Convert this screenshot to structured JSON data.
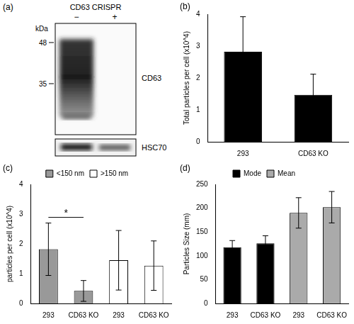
{
  "blot": {
    "panel": "(a)",
    "title": "CD63 CRISPR",
    "lanes": [
      "−",
      "+"
    ],
    "unit": "kDa",
    "markers": [
      48,
      35
    ],
    "bands": [
      "CD63",
      "HSC70"
    ]
  },
  "chart_data": [
    {
      "panel": "(b)",
      "type": "bar",
      "y_label": "Total particles per cell (x10^4)",
      "categories": [
        "293",
        "CD63 KO"
      ],
      "values": [
        2.82,
        1.47
      ],
      "errors": [
        1.1,
        0.65
      ],
      "color": "#000000",
      "ylim": [
        0,
        4
      ],
      "yticks": [
        0,
        1,
        2,
        3,
        4
      ],
      "grid": false
    },
    {
      "panel": "(c)",
      "type": "bar",
      "y_label": "particles per cell (x10^4)",
      "categories": [
        "293",
        "CD63 KO",
        "293",
        "CD63 KO"
      ],
      "series": [
        {
          "name": "<150 nm",
          "color": "#999999",
          "values": [
            1.82,
            0.42,
            null,
            null
          ],
          "errors": [
            0.88,
            0.35,
            null,
            null
          ]
        },
        {
          "name": ">150 nm",
          "color": "#ffffff",
          "values": [
            null,
            null,
            1.45,
            1.27
          ],
          "errors": [
            null,
            null,
            1.0,
            0.83
          ]
        }
      ],
      "annotations": [
        {
          "text": "*",
          "between": [
            0,
            1
          ]
        }
      ],
      "ylim": [
        0,
        4
      ],
      "yticks": [
        0,
        1,
        2,
        3,
        4
      ],
      "grid": false,
      "legend": "top"
    },
    {
      "panel": "(d)",
      "type": "bar",
      "y_label": "Particles Size (mm)",
      "categories": [
        "293",
        "CD63 KO",
        "293",
        "CD63 KO"
      ],
      "series": [
        {
          "name": "Mode",
          "color": "#000000",
          "values": [
            118,
            126,
            null,
            null
          ],
          "errors": [
            14,
            16,
            null,
            null
          ]
        },
        {
          "name": "Mean",
          "color": "#aaaaaa",
          "values": [
            null,
            null,
            190,
            202
          ],
          "errors": [
            null,
            null,
            32,
            33
          ]
        }
      ],
      "ylim": [
        0,
        250
      ],
      "yticks": [
        0,
        50,
        100,
        150,
        200,
        250
      ],
      "grid": false,
      "legend": "top"
    }
  ]
}
